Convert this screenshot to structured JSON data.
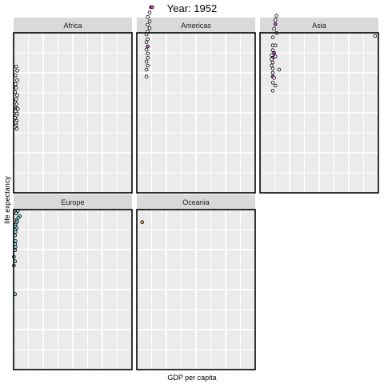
{
  "chart_data": {
    "type": "scatter",
    "title": "Year: 1952",
    "xlabel": "GDP per capita",
    "ylabel": "life expectancy",
    "xlim": [
      0,
      115000
    ],
    "ylim": [
      25,
      85
    ],
    "grid": true,
    "legend": "none",
    "facets": [
      {
        "name": "Africa",
        "points": [
          {
            "x": 2450,
            "y": 72.3,
            "color": "#ffffff"
          },
          {
            "x": 3520,
            "y": 70.8,
            "color": "#ffffff"
          },
          {
            "x": 1900,
            "y": 69.0,
            "color": "#ffffff"
          },
          {
            "x": 3520,
            "y": 67.2,
            "color": "#ffffff"
          },
          {
            "x": 1900,
            "y": 65.7,
            "color": "#ffffff"
          },
          {
            "x": 2450,
            "y": 64.4,
            "color": "#ffffff"
          },
          {
            "x": 1400,
            "y": 62.7,
            "color": "#ffffff"
          },
          {
            "x": 3520,
            "y": 61.5,
            "color": "#ffffff"
          },
          {
            "x": 2450,
            "y": 60.0,
            "color": "#ffffff"
          },
          {
            "x": 1400,
            "y": 58.9,
            "color": "#ffffff"
          },
          {
            "x": 2980,
            "y": 58.2,
            "color": "#ffffff"
          },
          {
            "x": 2450,
            "y": 56.8,
            "color": "#f08070"
          },
          {
            "x": 4100,
            "y": 56.5,
            "color": "#ffffff"
          },
          {
            "x": 1900,
            "y": 55.6,
            "color": "#ffffff"
          },
          {
            "x": 3520,
            "y": 54.7,
            "color": "#ffffff"
          },
          {
            "x": 2450,
            "y": 53.8,
            "color": "#ffffff"
          },
          {
            "x": 1400,
            "y": 53.1,
            "color": "#ffffff"
          },
          {
            "x": 2980,
            "y": 52.0,
            "color": "#ffffff"
          },
          {
            "x": 1900,
            "y": 51.3,
            "color": "#ffffff"
          },
          {
            "x": 2450,
            "y": 50.3,
            "color": "#ffffff"
          },
          {
            "x": 1400,
            "y": 49.6,
            "color": "#ffffff"
          },
          {
            "x": 3000,
            "y": 49.0,
            "color": "#ffffff"
          }
        ]
      },
      {
        "name": "Americas",
        "points": [
          {
            "x": 13650,
            "y": 94.6,
            "color": "#e040e0"
          },
          {
            "x": 14900,
            "y": 94.6,
            "color": "#e040e0"
          },
          {
            "x": 12450,
            "y": 92.6,
            "color": "#ffffff"
          },
          {
            "x": 10600,
            "y": 90.9,
            "color": "#ffffff"
          },
          {
            "x": 12450,
            "y": 89.3,
            "color": "#ffffff"
          },
          {
            "x": 10600,
            "y": 88.0,
            "color": "#ffffff"
          },
          {
            "x": 12450,
            "y": 86.7,
            "color": "#ffffff"
          },
          {
            "x": 10600,
            "y": 85.4,
            "color": "#ffffff"
          },
          {
            "x": 9400,
            "y": 84.4,
            "color": "#ffffff"
          },
          {
            "x": 10600,
            "y": 82.6,
            "color": "#ffffff"
          },
          {
            "x": 9400,
            "y": 81.5,
            "color": "#ffffff"
          },
          {
            "x": 10600,
            "y": 79.9,
            "color": "#d05ac8"
          },
          {
            "x": 9400,
            "y": 78.7,
            "color": "#ffffff"
          },
          {
            "x": 10600,
            "y": 77.2,
            "color": "#ffffff"
          },
          {
            "x": 10600,
            "y": 75.6,
            "color": "#ffffff"
          },
          {
            "x": 9400,
            "y": 74.2,
            "color": "#ffffff"
          },
          {
            "x": 10600,
            "y": 72.7,
            "color": "#ffffff"
          },
          {
            "x": 9400,
            "y": 71.2,
            "color": "#ffffff"
          },
          {
            "x": 9400,
            "y": 68.6,
            "color": "#ffffff"
          }
        ]
      },
      {
        "name": "Asia",
        "points": [
          {
            "x": 111800,
            "y": 83.8,
            "color": "#ffffff"
          },
          {
            "x": 16000,
            "y": 91.4,
            "color": "#ffffff"
          },
          {
            "x": 14900,
            "y": 89.8,
            "color": "#ffffff"
          },
          {
            "x": 14900,
            "y": 88.2,
            "color": "#e040e0"
          },
          {
            "x": 13650,
            "y": 86.5,
            "color": "#ffffff"
          },
          {
            "x": 16000,
            "y": 84.9,
            "color": "#ffffff"
          },
          {
            "x": 12450,
            "y": 83.3,
            "color": "#ffffff"
          },
          {
            "x": 12450,
            "y": 80.3,
            "color": "#ffffff"
          },
          {
            "x": 14900,
            "y": 80.3,
            "color": "#ffffff"
          },
          {
            "x": 12450,
            "y": 78.5,
            "color": "#ffffff"
          },
          {
            "x": 13650,
            "y": 77.4,
            "color": "#e040e0"
          },
          {
            "x": 11250,
            "y": 76.7,
            "color": "#ffffff"
          },
          {
            "x": 14900,
            "y": 76.1,
            "color": "#ffffff"
          },
          {
            "x": 12450,
            "y": 75.6,
            "color": "#e040e0"
          },
          {
            "x": 11250,
            "y": 75.0,
            "color": "#ffffff"
          },
          {
            "x": 12450,
            "y": 73.9,
            "color": "#ffffff"
          },
          {
            "x": 11250,
            "y": 72.7,
            "color": "#ffffff"
          },
          {
            "x": 12450,
            "y": 71.6,
            "color": "#ffffff"
          },
          {
            "x": 18600,
            "y": 71.2,
            "color": "#ffffff"
          },
          {
            "x": 12450,
            "y": 70.0,
            "color": "#ffffff"
          },
          {
            "x": 12450,
            "y": 68.6,
            "color": "#e040e0"
          },
          {
            "x": 13650,
            "y": 68.1,
            "color": "#ffffff"
          },
          {
            "x": 12450,
            "y": 66.3,
            "color": "#ffffff"
          },
          {
            "x": 14900,
            "y": 65.2,
            "color": "#ffffff"
          },
          {
            "x": 12450,
            "y": 63.3,
            "color": "#ffffff"
          }
        ]
      },
      {
        "name": "Europe",
        "points": [
          {
            "x": 2980,
            "y": 84.5,
            "color": "#a0e0f0"
          },
          {
            "x": 4100,
            "y": 84.5,
            "color": "#a0e0f0"
          },
          {
            "x": 2450,
            "y": 83.6,
            "color": "#a0e0f0"
          },
          {
            "x": 6000,
            "y": 82.5,
            "color": "#a0e0f0"
          },
          {
            "x": 4700,
            "y": 82.0,
            "color": "#a0e0f0"
          },
          {
            "x": 2980,
            "y": 81.2,
            "color": "#a0e0f0"
          },
          {
            "x": 3520,
            "y": 80.6,
            "color": "#a0e0f0"
          },
          {
            "x": 2450,
            "y": 79.9,
            "color": "#a0e0f0"
          },
          {
            "x": 1900,
            "y": 79.3,
            "color": "#a0e0f0"
          },
          {
            "x": 1400,
            "y": 78.7,
            "color": "#a0e0f0"
          },
          {
            "x": 2980,
            "y": 78.0,
            "color": "#a0e0f0"
          },
          {
            "x": 1400,
            "y": 77.4,
            "color": "#a0e0f0"
          },
          {
            "x": 1900,
            "y": 76.6,
            "color": "#a0e0f0"
          },
          {
            "x": 1400,
            "y": 75.3,
            "color": "#a0e0f0"
          },
          {
            "x": 1900,
            "y": 73.2,
            "color": "#a0e0f0"
          },
          {
            "x": 1400,
            "y": 72.0,
            "color": "#a0e0f0"
          },
          {
            "x": 1900,
            "y": 71.0,
            "color": "#a0e0f0"
          },
          {
            "x": 1400,
            "y": 69.8,
            "color": "#a0e0f0"
          },
          {
            "x": 300,
            "y": 67.3,
            "color": "#a0e0f0"
          },
          {
            "x": 1400,
            "y": 65.6,
            "color": "#a0e0f0"
          },
          {
            "x": 300,
            "y": 64.0,
            "color": "#a0e0f0"
          },
          {
            "x": 1400,
            "y": 53.3,
            "color": "#a0e0f0"
          }
        ]
      },
      {
        "name": "Oceania",
        "points": [
          {
            "x": 5200,
            "y": 80.3,
            "color": "#f0a860"
          }
        ]
      }
    ]
  }
}
